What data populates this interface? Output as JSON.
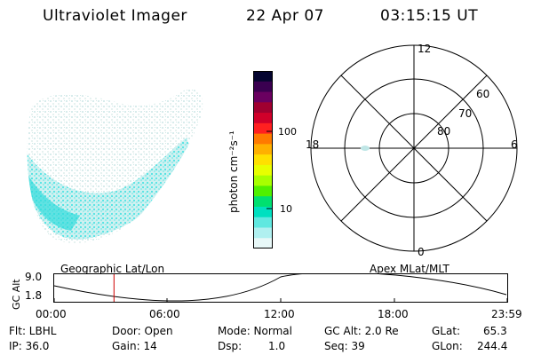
{
  "header": {
    "instrument": "Ultraviolet Imager",
    "date": "22 Apr 07",
    "time": "03:15:15 UT"
  },
  "colorbar": {
    "label": "photon cm⁻²s⁻¹",
    "ticks": [
      "100",
      "10"
    ],
    "colors": [
      "#050530",
      "#3a0050",
      "#6a0060",
      "#a00030",
      "#d0002a",
      "#ff2020",
      "#ff7a00",
      "#ffb000",
      "#ffe000",
      "#e8ff00",
      "#a8ff00",
      "#50f000",
      "#00e070",
      "#00e0c0",
      "#60e8e0",
      "#b0f0f0",
      "#e8f8f8"
    ]
  },
  "polar": {
    "mlt_labels": [
      "12",
      "6",
      "18",
      "0"
    ],
    "lat_labels": [
      "60",
      "70",
      "80"
    ]
  },
  "timeline": {
    "ylabel": "GC Alt",
    "ytick_top": "9.0",
    "ytick_bottom": "1.8",
    "left_title": "Geographic Lat/Lon",
    "right_title": "Apex MLat/MLT",
    "xticks": [
      "00:00",
      "06:00",
      "12:00",
      "18:00",
      "23:59"
    ],
    "current_time_fraction": 0.132
  },
  "status": {
    "flt": "Flt: LBHL",
    "ip": "IP: 36.0",
    "door": "Door: Open",
    "gain": "Gain: 14",
    "mode": "Mode: Normal",
    "dsp_label": "Dsp:",
    "dsp_value": "1.0",
    "gcalt": "GC Alt: 2.0 Re",
    "seq": "Seq: 39",
    "glat_label": "GLat:",
    "glat_value": "65.3",
    "glon_label": "GLon:",
    "glon_value": "244.4"
  }
}
